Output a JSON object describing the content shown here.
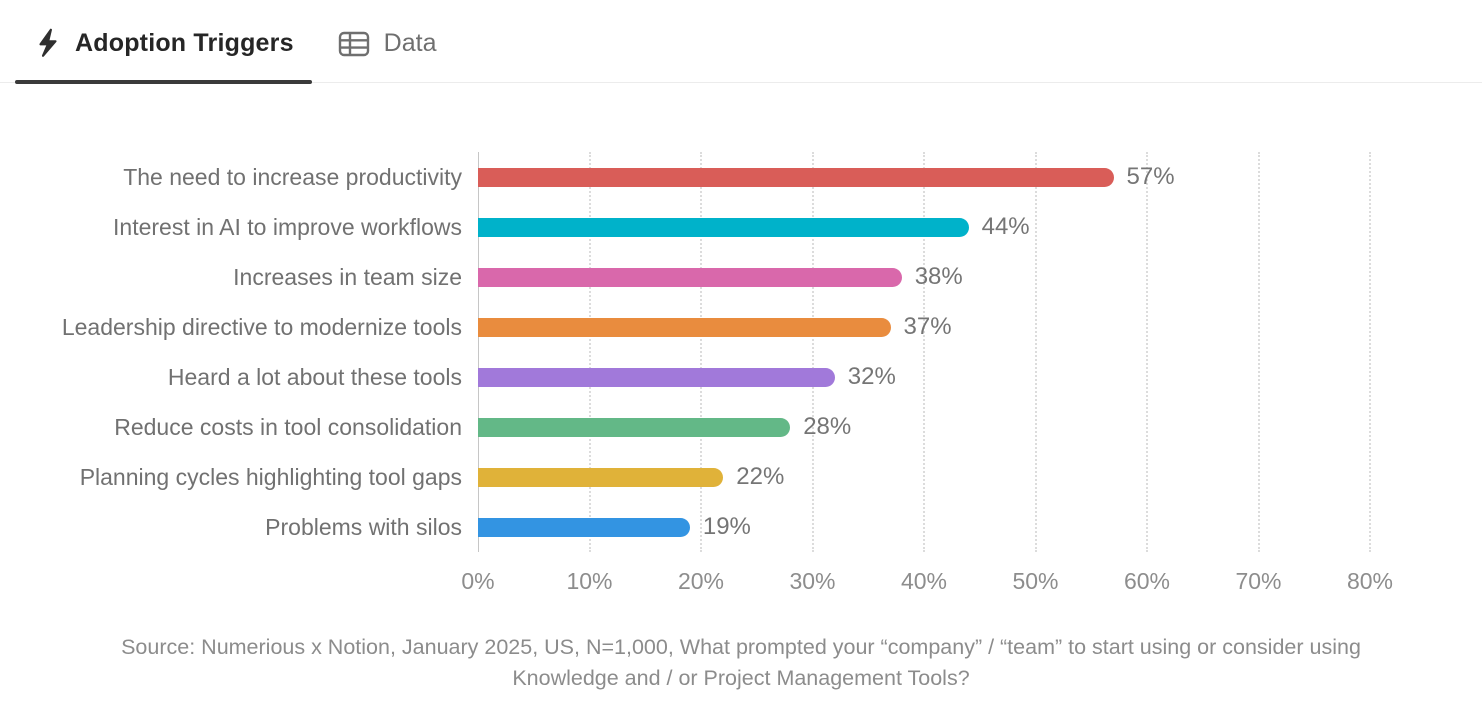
{
  "tabs": [
    {
      "label": "Adoption Triggers",
      "icon": "bolt-icon",
      "active": true
    },
    {
      "label": "Data",
      "icon": "table-icon",
      "active": false
    }
  ],
  "chart_data": {
    "type": "bar",
    "orientation": "horizontal",
    "title": "Adoption Triggers",
    "categories": [
      "The need to increase productivity",
      "Interest in AI to improve workflows",
      "Increases in team size",
      "Leadership directive to modernize tools",
      "Heard a lot about these tools",
      "Reduce costs in tool consolidation",
      "Planning cycles highlighting tool gaps",
      "Problems with silos"
    ],
    "values": [
      57,
      44,
      38,
      37,
      32,
      28,
      22,
      19
    ],
    "value_labels": [
      "57%",
      "44%",
      "38%",
      "37%",
      "32%",
      "28%",
      "22%",
      "19%"
    ],
    "bar_colors": [
      "#d95d58",
      "#00b2ca",
      "#d968ab",
      "#e98c3e",
      "#a179da",
      "#63b887",
      "#e0b239",
      "#3394e2"
    ],
    "x_ticks": [
      "0%",
      "10%",
      "20%",
      "30%",
      "40%",
      "50%",
      "60%",
      "70%",
      "80%"
    ],
    "xlim": [
      0,
      80
    ],
    "xlabel": "",
    "ylabel": "",
    "grid": "dotted-vertical",
    "legend": "none"
  },
  "source_caption": "Source: Numerious x Notion, January 2025, US, N=1,000, What prompted your “company” / “team” to start using or consider using Knowledge and / or Project Management Tools?",
  "colors": {
    "active_tab_text": "#262626",
    "active_tab_underline": "#3a3a3a",
    "inactive_tab_text": "#6f6f6f",
    "category_label_text": "#717171",
    "value_label_text": "#757575",
    "axis_tick_text": "#8d8d8d",
    "gridline": "#dcdcdc",
    "header_border": "#ececec",
    "background": "#ffffff"
  }
}
